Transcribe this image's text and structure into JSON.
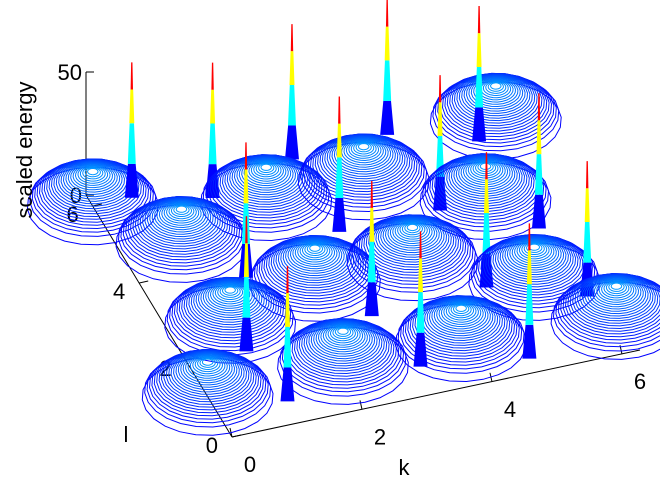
{
  "chart_data": {
    "type": "surface3d",
    "zlabel": "scaled energy",
    "xlabel": "k",
    "ylabel": "l",
    "xlim": [
      0,
      6.28
    ],
    "ylim": [
      0,
      6.28
    ],
    "zlim": [
      0,
      50
    ],
    "x_ticks": [
      "0",
      "2",
      "4",
      "6"
    ],
    "y_ticks": [
      "0",
      "2",
      "4",
      "6"
    ],
    "z_ticks": [
      "0",
      "50"
    ],
    "dome_centers": [
      [
        0.0,
        1.05
      ],
      [
        0.9,
        2.6
      ],
      [
        0.9,
        4.7
      ],
      [
        0.0,
        6.0
      ],
      [
        2.1,
        1.1
      ],
      [
        2.4,
        3.15
      ],
      [
        2.4,
        5.25
      ],
      [
        3.9,
        1.05
      ],
      [
        3.9,
        3.15
      ],
      [
        3.9,
        5.25
      ],
      [
        5.4,
        2.1
      ],
      [
        5.4,
        4.2
      ],
      [
        6.2,
        0.8
      ],
      [
        6.2,
        6.0
      ]
    ],
    "dome_peak": 14,
    "spike_positions": [
      [
        1.05,
        0.55
      ],
      [
        0.9,
        1.9
      ],
      [
        1.5,
        3.6
      ],
      [
        1.7,
        5.6
      ],
      [
        0.6,
        6.0
      ],
      [
        3.15,
        0.7
      ],
      [
        2.9,
        2.1
      ],
      [
        3.15,
        4.2
      ],
      [
        3.1,
        6.1
      ],
      [
        4.7,
        0.35
      ],
      [
        4.7,
        2.2
      ],
      [
        4.7,
        4.2
      ],
      [
        4.6,
        6.2
      ],
      [
        6.0,
        1.5
      ],
      [
        5.9,
        3.3
      ],
      [
        5.8,
        5.6
      ]
    ],
    "spike_peak": 55
  },
  "colors": {
    "ring_low": "#0000ff",
    "ring_high": "#00c8ff",
    "spike_base": "#0000ff",
    "spike_mid": "#00ffff",
    "spike_upper": "#ffff00",
    "spike_top": "#ff0000"
  }
}
